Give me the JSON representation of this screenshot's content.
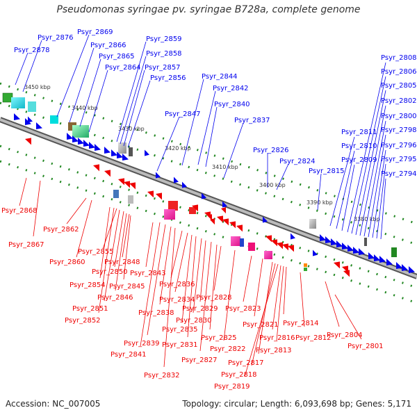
{
  "title": "Pseudomonas syringae pv. syringae B728a, complete genome",
  "footer": {
    "accession": "Accession: NC_007005",
    "topology": "Topology: circular; Length: 6,093,698 bp; Genes: 5,171"
  },
  "colors": {
    "forward": "#0000ee",
    "reverse": "#ee0000",
    "backbone": "#888888",
    "dots": "#228822"
  },
  "ticks": [
    "3450 kbp",
    "3440 kbp",
    "3430 kbp",
    "3420 kbp",
    "3410 kbp",
    "3400 kbp",
    "3390 kbp",
    "3380 kbp"
  ],
  "top_genes": [
    "Psyr_2878",
    "Psyr_2876",
    "Psyr_2869",
    "Psyr_2866",
    "Psyr_2865",
    "Psyr_2864",
    "Psyr_2859",
    "Psyr_2858",
    "Psyr_2857",
    "Psyr_2856",
    "Psyr_2847",
    "Psyr_2844",
    "Psyr_2842",
    "Psyr_2840",
    "Psyr_2837",
    "Psyr_2826",
    "Psyr_2824",
    "Psyr_2815",
    "Psyr_2811",
    "Psyr_2810",
    "Psyr_2809",
    "Psyr_2808",
    "Psyr_2806",
    "Psyr_2805",
    "Psyr_2802",
    "Psyr_2800",
    "Psyr_2798",
    "Psyr_2796",
    "Psyr_2795",
    "Psyr_2794"
  ],
  "bottom_genes": [
    "Psyr_2868",
    "Psyr_2867",
    "Psyr_2862",
    "Psyr_2860",
    "Psyr_2855",
    "Psyr_2850",
    "Psyr_2854",
    "Psyr_2848",
    "Psyr_2845",
    "Psyr_2846",
    "Psyr_2843",
    "Psyr_2851",
    "Psyr_2852",
    "Psyr_2836",
    "Psyr_2834",
    "Psyr_2838",
    "Psyr_2835",
    "Psyr_2839",
    "Psyr_2841",
    "Psyr_2831",
    "Psyr_2832",
    "Psyr_2829",
    "Psyr_2828",
    "Psyr_2830",
    "Psyr_2827",
    "Psyr_2825",
    "Psyr_2823",
    "Psyr_2822",
    "Psyr_2821",
    "Psyr_2817",
    "Psyr_2818",
    "Psyr_2819",
    "Psyr_2816",
    "Psyr_2814",
    "Psyr_2813",
    "Psyr_2812",
    "Psyr_2804",
    "Psyr_2801"
  ]
}
